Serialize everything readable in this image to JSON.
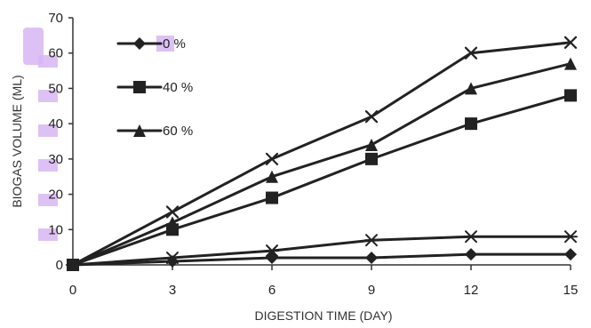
{
  "chart_data": {
    "type": "line",
    "title": "",
    "xlabel": "DIGESTION TIME (DAY)",
    "ylabel": "BIOGAS VOLUME (ML)",
    "x": [
      0,
      3,
      6,
      9,
      12,
      15
    ],
    "xlim": [
      0,
      15
    ],
    "ylim": [
      0,
      70
    ],
    "xticks": [
      "0",
      "3",
      "6",
      "9",
      "12",
      "15"
    ],
    "yticks": [
      "0",
      "10",
      "20",
      "30",
      "40",
      "50",
      "60",
      "70"
    ],
    "grid": false,
    "legend_position": "top-left",
    "series": [
      {
        "name": "0 %",
        "marker": "diamond",
        "color": "#222222",
        "values": [
          0,
          1,
          2,
          2,
          3,
          3
        ]
      },
      {
        "name": "40 %",
        "marker": "square",
        "color": "#222222",
        "values": [
          0,
          10,
          19,
          30,
          40,
          48
        ]
      },
      {
        "name": "60 %",
        "marker": "triangle",
        "color": "#222222",
        "values": [
          0,
          12,
          25,
          34,
          50,
          57
        ]
      },
      {
        "marker": "x",
        "color": "#222222",
        "values": [
          0,
          15,
          30,
          42,
          60,
          63
        ]
      },
      {
        "marker": "asterisk",
        "color": "#222222",
        "values": [
          0,
          2,
          4,
          7,
          8,
          8
        ]
      }
    ],
    "highlight_color": "#d7b6f3"
  }
}
